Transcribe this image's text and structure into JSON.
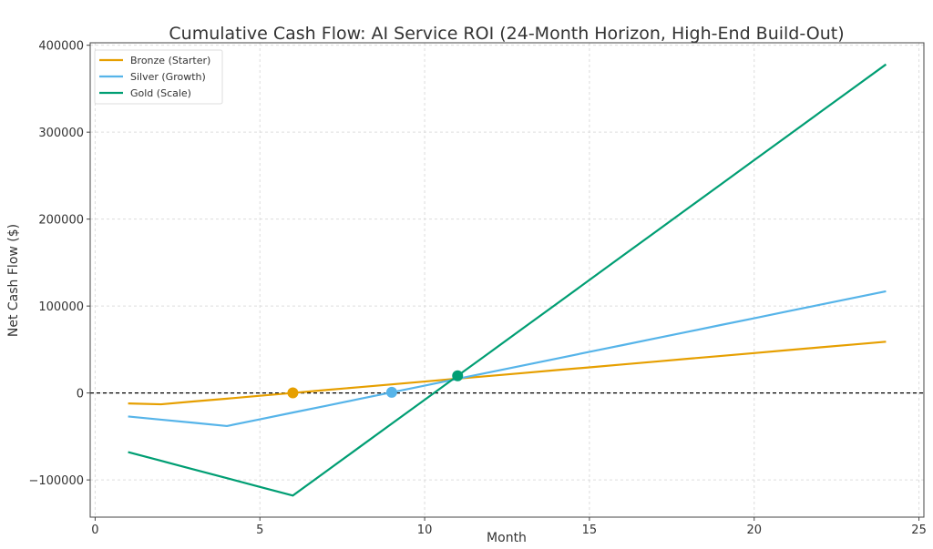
{
  "chart_data": {
    "type": "line",
    "title": "Cumulative Cash Flow: AI Service ROI (24-Month Horizon, High-End Build-Out)",
    "xlabel": "Month",
    "ylabel": "Net Cash Flow ($)",
    "xlim": [
      -0.15,
      25.15
    ],
    "ylim": [
      -142800,
      402800
    ],
    "xticks": [
      0,
      5,
      10,
      15,
      20,
      25
    ],
    "yticks": [
      -100000,
      0,
      100000,
      200000,
      300000,
      400000
    ],
    "ytick_labels": [
      "−100000",
      "0",
      "100000",
      "200000",
      "300000",
      "400000"
    ],
    "grid": true,
    "legend_position": "top-left",
    "reference_line": {
      "y": 0,
      "style": "dashed",
      "color": "#000000"
    },
    "x": [
      1,
      2,
      3,
      4,
      5,
      6,
      7,
      8,
      9,
      10,
      11,
      12,
      13,
      14,
      15,
      16,
      17,
      18,
      19,
      20,
      21,
      22,
      23,
      24
    ],
    "series": [
      {
        "name": "Bronze (Starter)",
        "color": "#E69F00",
        "values": [
          -12000,
          -13000,
          -9700,
          -6500,
          -3200,
          100,
          3400,
          6600,
          9900,
          13200,
          16500,
          19700,
          23000,
          26300,
          29500,
          32800,
          36100,
          39400,
          42600,
          45900,
          49200,
          52500,
          55700,
          59000
        ],
        "breakeven": {
          "month": 6,
          "value": 100
        }
      },
      {
        "name": "Silver (Growth)",
        "color": "#56B4E9",
        "values": [
          -27000,
          -30700,
          -34300,
          -38000,
          -30300,
          -22500,
          -14800,
          -7000,
          750,
          8500,
          16300,
          24000,
          31800,
          39500,
          47300,
          55000,
          62800,
          70500,
          78300,
          86000,
          93800,
          101500,
          109300,
          117000
        ],
        "breakeven": {
          "month": 9,
          "value": 750
        }
      },
      {
        "name": "Gold (Scale)",
        "color": "#009E73",
        "values": [
          -68000,
          -78000,
          -88000,
          -98000,
          -108000,
          -118000,
          -90400,
          -62900,
          -35300,
          -7800,
          19800,
          47300,
          74900,
          102400,
          130000,
          157600,
          185100,
          212700,
          240200,
          267800,
          295300,
          322900,
          350400,
          378000
        ],
        "breakeven": {
          "month": 11,
          "value": 19800
        }
      }
    ]
  }
}
